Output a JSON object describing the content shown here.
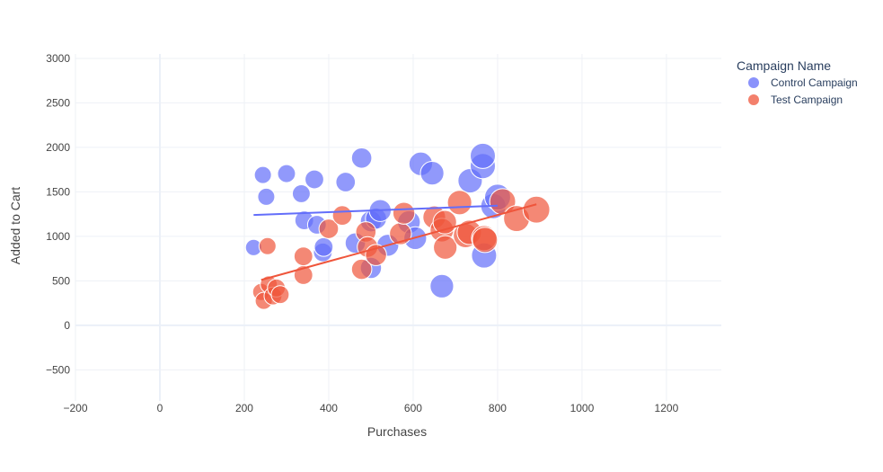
{
  "chart_data": {
    "type": "scatter",
    "xlabel": "Purchases",
    "ylabel": "Added to Cart",
    "xlim": [
      -200,
      1330
    ],
    "ylim": [
      -850,
      3050
    ],
    "xticks": [
      -200,
      0,
      200,
      400,
      600,
      800,
      1000,
      1200
    ],
    "xtick_labels": [
      "−200",
      "0",
      "200",
      "400",
      "600",
      "800",
      "1000",
      "1200"
    ],
    "yticks": [
      -500,
      0,
      500,
      1000,
      1500,
      2000,
      2500,
      3000
    ],
    "ytick_labels": [
      "−500",
      "0",
      "500",
      "1000",
      "1500",
      "2000",
      "2500",
      "3000"
    ],
    "grid": true,
    "legend": {
      "title": "Campaign Name",
      "placement": "right"
    },
    "series": [
      {
        "name": "Control Campaign",
        "color": "#636efa",
        "trendline": [
          [
            222,
            1240
          ],
          [
            800,
            1345
          ]
        ],
        "points": [
          [
            222,
            875,
            0.45
          ],
          [
            244,
            1690,
            0.5
          ],
          [
            252,
            1445,
            0.5
          ],
          [
            300,
            1705,
            0.55
          ],
          [
            335,
            1480,
            0.55
          ],
          [
            342,
            1180,
            0.6
          ],
          [
            366,
            1640,
            0.6
          ],
          [
            372,
            1130,
            0.6
          ],
          [
            386,
            820,
            0.6
          ],
          [
            388,
            880,
            0.6
          ],
          [
            440,
            1610,
            0.65
          ],
          [
            463,
            925,
            0.7
          ],
          [
            478,
            1880,
            0.7
          ],
          [
            500,
            645,
            0.75
          ],
          [
            500,
            1170,
            0.75
          ],
          [
            512,
            1200,
            0.75
          ],
          [
            522,
            1290,
            0.8
          ],
          [
            540,
            900,
            0.8
          ],
          [
            590,
            1160,
            0.85
          ],
          [
            605,
            980,
            0.85
          ],
          [
            618,
            1815,
            0.9
          ],
          [
            645,
            1710,
            0.9
          ],
          [
            668,
            440,
            0.9
          ],
          [
            735,
            1625,
            0.95
          ],
          [
            765,
            1790,
            1.0
          ],
          [
            765,
            1905,
            1.0
          ],
          [
            768,
            785,
            1.0
          ],
          [
            790,
            1340,
            1.0
          ],
          [
            800,
            1440,
            1.05
          ]
        ]
      },
      {
        "name": "Test Campaign",
        "color": "#ef553b",
        "trendline": [
          [
            240,
            510
          ],
          [
            892,
            1360
          ]
        ],
        "points": [
          [
            240,
            375,
            0.5
          ],
          [
            246,
            275,
            0.5
          ],
          [
            255,
            890,
            0.5
          ],
          [
            258,
            460,
            0.5
          ],
          [
            268,
            330,
            0.55
          ],
          [
            276,
            420,
            0.55
          ],
          [
            285,
            345,
            0.55
          ],
          [
            340,
            565,
            0.6
          ],
          [
            340,
            775,
            0.6
          ],
          [
            400,
            1085,
            0.65
          ],
          [
            432,
            1235,
            0.65
          ],
          [
            478,
            630,
            0.7
          ],
          [
            488,
            1050,
            0.7
          ],
          [
            492,
            880,
            0.72
          ],
          [
            512,
            790,
            0.75
          ],
          [
            570,
            1030,
            0.8
          ],
          [
            578,
            1260,
            0.8
          ],
          [
            650,
            1215,
            0.85
          ],
          [
            668,
            1070,
            0.9
          ],
          [
            675,
            1160,
            0.9
          ],
          [
            676,
            875,
            0.9
          ],
          [
            710,
            1380,
            0.95
          ],
          [
            724,
            1010,
            0.95
          ],
          [
            733,
            1045,
            0.95
          ],
          [
            768,
            980,
            1.0
          ],
          [
            770,
            960,
            1.0
          ],
          [
            812,
            1390,
            1.05
          ],
          [
            845,
            1200,
            1.05
          ],
          [
            892,
            1300,
            1.1
          ]
        ]
      }
    ]
  }
}
